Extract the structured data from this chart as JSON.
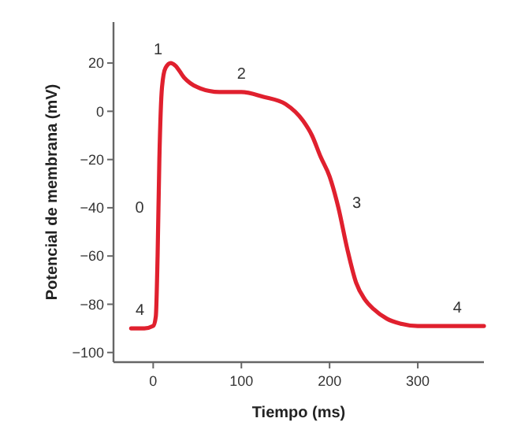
{
  "chart_data": {
    "type": "line",
    "xlabel": "Tiempo (ms)",
    "ylabel": "Potencial de membrana (mV)",
    "xlim": [
      -45,
      375
    ],
    "ylim": [
      -104,
      37
    ],
    "xticks": [
      0,
      100,
      200,
      300
    ],
    "yticks": [
      -100,
      -80,
      -60,
      -40,
      -20,
      0,
      20
    ],
    "grid": false,
    "marker": "none",
    "line_style": "solid",
    "series": [
      {
        "color": "#e0202e",
        "x": [
          -25,
          -10,
          0,
          3,
          5,
          7,
          10,
          14,
          20,
          25,
          35,
          50,
          75,
          100,
          125,
          150,
          170,
          180,
          190,
          200,
          210,
          220,
          230,
          240,
          250,
          265,
          280,
          300,
          375
        ],
        "values": [
          -90,
          -90,
          -89,
          -85,
          -60,
          -20,
          10,
          18,
          20,
          19,
          14,
          10,
          8,
          8,
          6,
          3,
          -4,
          -10,
          -19,
          -27,
          -40,
          -57,
          -71,
          -78,
          -82,
          -86,
          -88,
          -89,
          -89
        ]
      }
    ],
    "annotations": [
      {
        "text": "0",
        "x": 6,
        "y": -40
      },
      {
        "text": "1",
        "x": 20,
        "y": 20
      },
      {
        "text": "2",
        "x": 100,
        "y": 8
      },
      {
        "text": "3",
        "x": 210,
        "y": -40
      },
      {
        "text": "4",
        "x": -15,
        "y": -90
      },
      {
        "text": "4",
        "x": 345,
        "y": -89
      }
    ]
  }
}
